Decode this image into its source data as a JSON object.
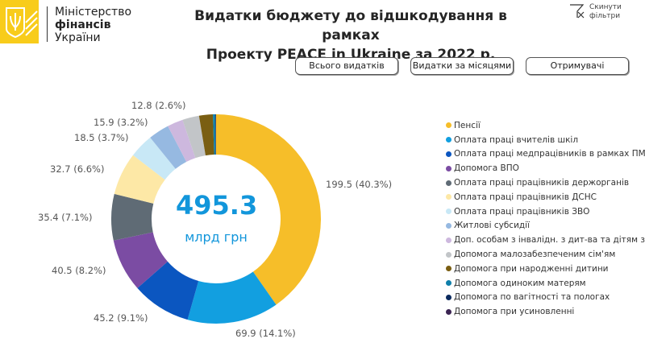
{
  "header": {
    "brand_line1": "Міністерство",
    "brand_line2": "фінансів",
    "brand_line3": "України",
    "title_line1": "Видатки бюджету до відшкодування в рамках",
    "title_line2": "Проекту PEACE in Ukraine за 2022 р.",
    "reset_line1": "Скинути",
    "reset_line2": "фільтри"
  },
  "buttons": {
    "all": "Всього видатків",
    "monthly": "Видатки за місяцями",
    "recipients": "Отримувачі"
  },
  "center": {
    "value": "495.3",
    "unit": "млрд грн"
  },
  "chart_data": {
    "type": "pie",
    "title": "Видатки бюджету до відшкодування в рамках Проекту PEACE in Ukraine за 2022 р.",
    "total": 495.3,
    "unit": "млрд грн",
    "legend_position": "right",
    "slices": [
      {
        "name": "Пенсії",
        "value": 199.5,
        "label": "199.5 (40.3%)",
        "color": "#F6BE29"
      },
      {
        "name": "Оплата праці вчителів шкіл",
        "value": 69.9,
        "label": "69.9 (14.1%)",
        "color": "#129FE0"
      },
      {
        "name": "Оплата праці медпрацівників в рамках ПМГ",
        "value": 45.2,
        "label": "45.2 (9.1%)",
        "color": "#0B56C0"
      },
      {
        "name": "Допомога ВПО",
        "value": 40.5,
        "label": "40.5 (8.2%)",
        "color": "#7B4CA3"
      },
      {
        "name": "Оплата праці працівників держорганів",
        "value": 35.4,
        "label": "35.4 (7.1%)",
        "color": "#5F6B75"
      },
      {
        "name": "Оплата праці працівників ДСНС",
        "value": 32.7,
        "label": "32.7 (6.6%)",
        "color": "#FDE8A6"
      },
      {
        "name": "Оплата праці працівників ЗВО",
        "value": 18.5,
        "label": "18.5 (3.7%)",
        "color": "#C8E8F6"
      },
      {
        "name": "Житлові субсидії",
        "value": 15.9,
        "label": "15.9 (3.2%)",
        "color": "#96B9E1"
      },
      {
        "name": "Доп. особам з інвалідн. з дит-ва та дітям з інва...",
        "value": 12.0,
        "label": "",
        "color": "#CDB8DE"
      },
      {
        "name": "Допомога малозабезпеченим сім'ям",
        "value": 12.8,
        "label": "12.8 (2.6%)",
        "color": "#C2C5C8"
      },
      {
        "name": "Допомога при народженні дитини",
        "value": 10.5,
        "label": "",
        "color": "#7A5E12"
      },
      {
        "name": "Допомога одиноким матерям",
        "value": 1.8,
        "label": "",
        "color": "#0F7FAA"
      },
      {
        "name": "Допомога по вагітності та пологах",
        "value": 0.5,
        "label": "",
        "color": "#0C2A5E"
      },
      {
        "name": "Допомога при усиновленні",
        "value": 0.1,
        "label": "",
        "color": "#3B2452"
      }
    ]
  }
}
